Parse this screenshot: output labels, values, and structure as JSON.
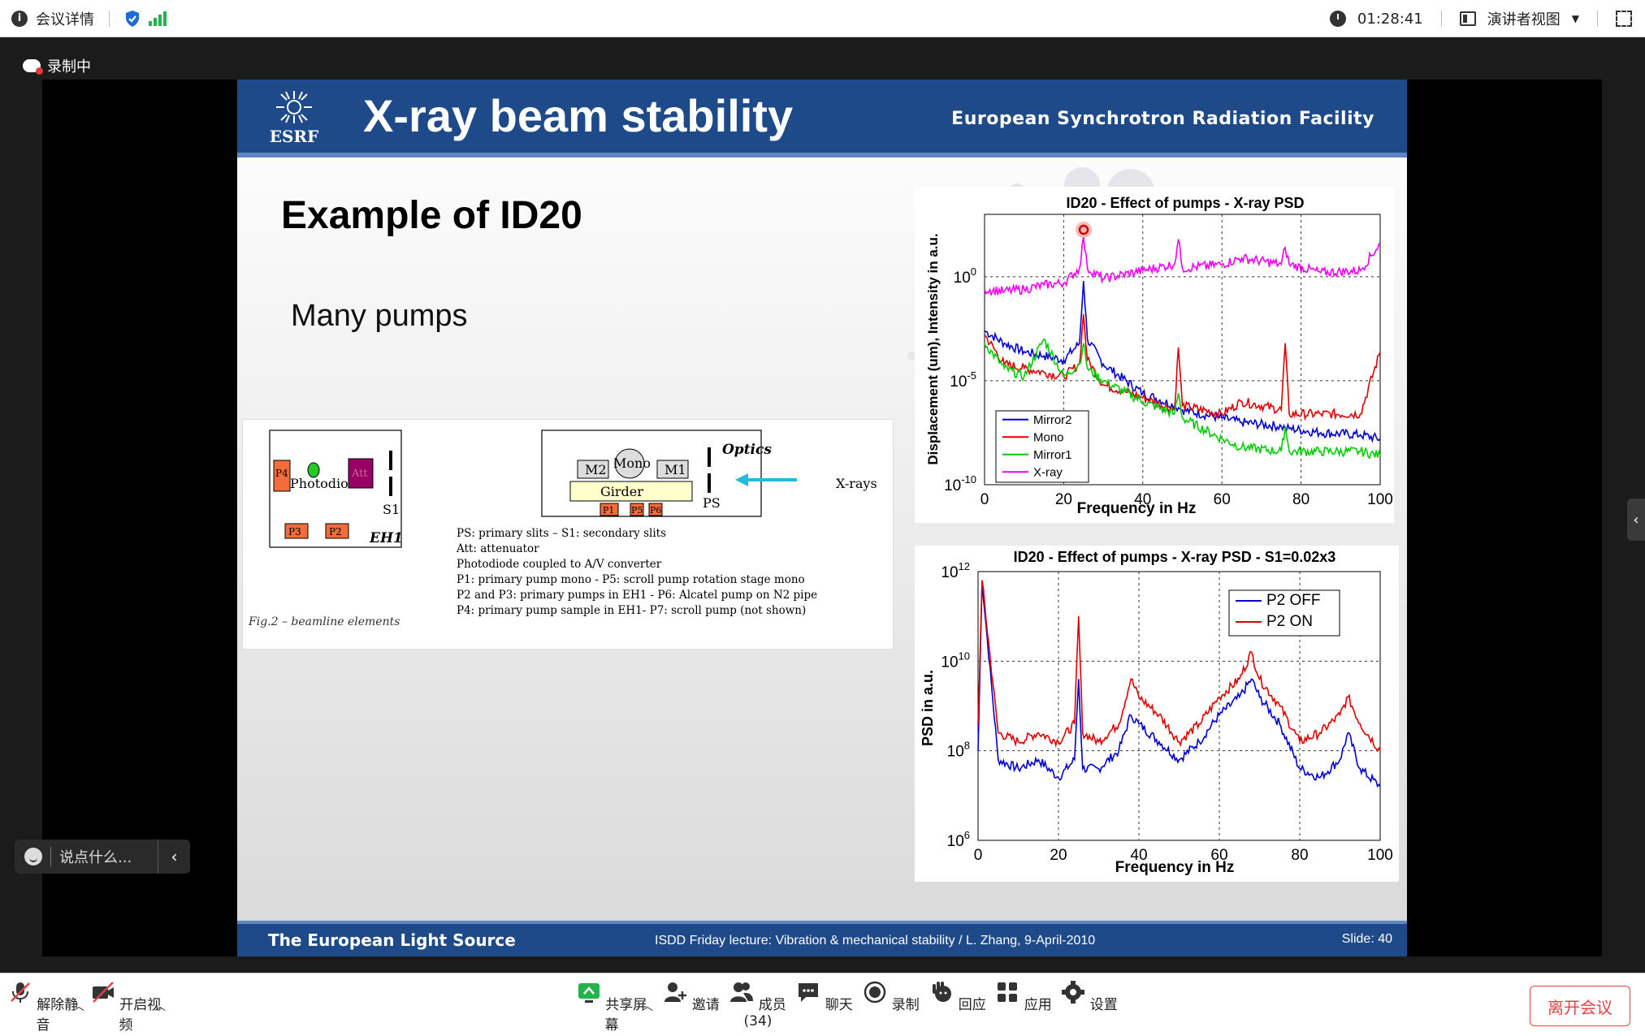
{
  "topbar": {
    "meeting_info": "会议详情",
    "timer": "01:28:41",
    "view_mode": "演讲者视图"
  },
  "recording": {
    "label": "录制中"
  },
  "slide": {
    "header_title": "X-ray beam stability",
    "logo_text": "ESRF",
    "org": "European Synchrotron Radiation Facility",
    "heading": "Example of ID20",
    "subheading": "Many pumps",
    "figure": {
      "caption": "Fig.2 – beamline elements",
      "boxes": [
        "P4",
        "Photodiode",
        "Att",
        "S1",
        "P3",
        "P2",
        "EH1",
        "Optics",
        "M2",
        "Mono",
        "M1",
        "Girder",
        "P1",
        "P5",
        "P6",
        "PS",
        "X-rays"
      ],
      "notes": [
        "PS: primary slits – S1: secondary slits",
        "Att: attenuator",
        "Photodiode coupled to A/V converter",
        "P1: primary pump mono  - P5: scroll pump rotation stage mono",
        "P2 and P3: primary pumps in EH1 - P6: Alcatel pump on N2 pipe",
        "P4: primary pump sample in EH1- P7: scroll pump (not shown)"
      ]
    },
    "footer_left": "The European Light Source",
    "footer_mid": "ISDD Friday lecture: Vibration & mechanical stability / L. Zhang,  9-April-2010",
    "footer_right": "Slide: 40"
  },
  "chart_data": [
    {
      "type": "line",
      "title": "ID20 - Effect of pumps - X-ray PSD",
      "xlabel": "Frequency in Hz",
      "ylabel": "Displacement (um), Intensity in a.u.",
      "xlim": [
        0,
        100
      ],
      "ylim_log10": [
        -10,
        3
      ],
      "xticks": [
        "0",
        "20",
        "40",
        "60",
        "80",
        "100"
      ],
      "yticks": [
        "10^0",
        "10^-5",
        "10^-10"
      ],
      "y_scale": "log",
      "grid": true,
      "legend_position": "bottom-left",
      "x": [
        0,
        5,
        10,
        15,
        20,
        24,
        25,
        26,
        30,
        40,
        48,
        49,
        50,
        60,
        65,
        75,
        76,
        77,
        85,
        95,
        100
      ],
      "series": [
        {
          "name": "Mirror2",
          "color": "#0000cc",
          "log10": [
            -2.6,
            -3.2,
            -3.6,
            -3.8,
            -4.0,
            -3.2,
            -0.2,
            -3.0,
            -4.2,
            -5.6,
            -6.2,
            -6.3,
            -6.4,
            -6.8,
            -7.0,
            -7.2,
            -7.3,
            -7.3,
            -7.5,
            -7.6,
            -7.8
          ]
        },
        {
          "name": "Mono",
          "color": "#dd0000",
          "log10": [
            -2.8,
            -4.2,
            -4.4,
            -4.6,
            -4.8,
            -4.2,
            -1.8,
            -4.0,
            -5.2,
            -5.8,
            -6.4,
            -3.4,
            -6.2,
            -6.6,
            -6.0,
            -6.4,
            -3.2,
            -6.6,
            -6.6,
            -6.6,
            -3.6
          ]
        },
        {
          "name": "Mirror1",
          "color": "#00cc00",
          "log10": [
            -3.2,
            -4.4,
            -4.8,
            -3.0,
            -4.8,
            -4.2,
            -3.2,
            -4.4,
            -5.0,
            -6.0,
            -6.6,
            -5.6,
            -6.8,
            -7.8,
            -8.2,
            -8.4,
            -7.2,
            -8.4,
            -8.4,
            -8.4,
            -8.6
          ]
        },
        {
          "name": "X-ray",
          "color": "#ee00ee",
          "log10": [
            -0.6,
            -0.7,
            -0.6,
            -0.4,
            -0.3,
            0.4,
            1.9,
            0.4,
            -0.1,
            0.3,
            0.6,
            1.8,
            0.4,
            0.6,
            0.9,
            0.6,
            1.4,
            0.6,
            0.2,
            0.3,
            1.6
          ]
        }
      ]
    },
    {
      "type": "line",
      "title": "ID20 - Effect of pumps - X-ray PSD - S1=0.02x3",
      "xlabel": "Frequency in Hz",
      "ylabel": "PSD in a.u.",
      "xlim": [
        0,
        100
      ],
      "ylim_log10": [
        6,
        12
      ],
      "xticks": [
        "0",
        "20",
        "40",
        "60",
        "80",
        "100"
      ],
      "yticks": [
        "10^12",
        "10^10",
        "10^8",
        "10^6"
      ],
      "y_scale": "log",
      "grid": true,
      "legend_position": "top-right",
      "x": [
        0,
        1,
        5,
        10,
        15,
        20,
        24,
        25,
        26,
        30,
        35,
        38,
        40,
        45,
        50,
        55,
        60,
        65,
        68,
        70,
        75,
        80,
        85,
        90,
        92,
        95,
        100
      ],
      "series": [
        {
          "name": "P2 OFF",
          "color": "#0000cc",
          "log10": [
            8.0,
            11.8,
            7.8,
            7.6,
            7.8,
            7.4,
            7.8,
            9.6,
            7.6,
            7.6,
            8.0,
            8.8,
            8.6,
            8.2,
            7.8,
            8.2,
            8.8,
            9.2,
            9.6,
            9.2,
            8.6,
            7.6,
            7.4,
            7.8,
            8.4,
            7.6,
            7.2
          ]
        },
        {
          "name": "P2 ON",
          "color": "#dd0000",
          "log10": [
            8.6,
            11.8,
            8.4,
            8.2,
            8.4,
            8.2,
            8.6,
            11.0,
            8.4,
            8.2,
            8.6,
            9.6,
            9.2,
            8.8,
            8.2,
            8.6,
            9.2,
            9.6,
            10.2,
            9.6,
            9.0,
            8.2,
            8.4,
            8.8,
            9.2,
            8.6,
            8.0
          ]
        }
      ]
    }
  ],
  "chat": {
    "placeholder": "说点什么..."
  },
  "toolbar": {
    "items": [
      "解除静音",
      "开启视频",
      "共享屏幕",
      "邀请",
      "成员(34)",
      "聊天",
      "录制",
      "回应",
      "应用",
      "设置"
    ],
    "leave": "离开会议"
  }
}
